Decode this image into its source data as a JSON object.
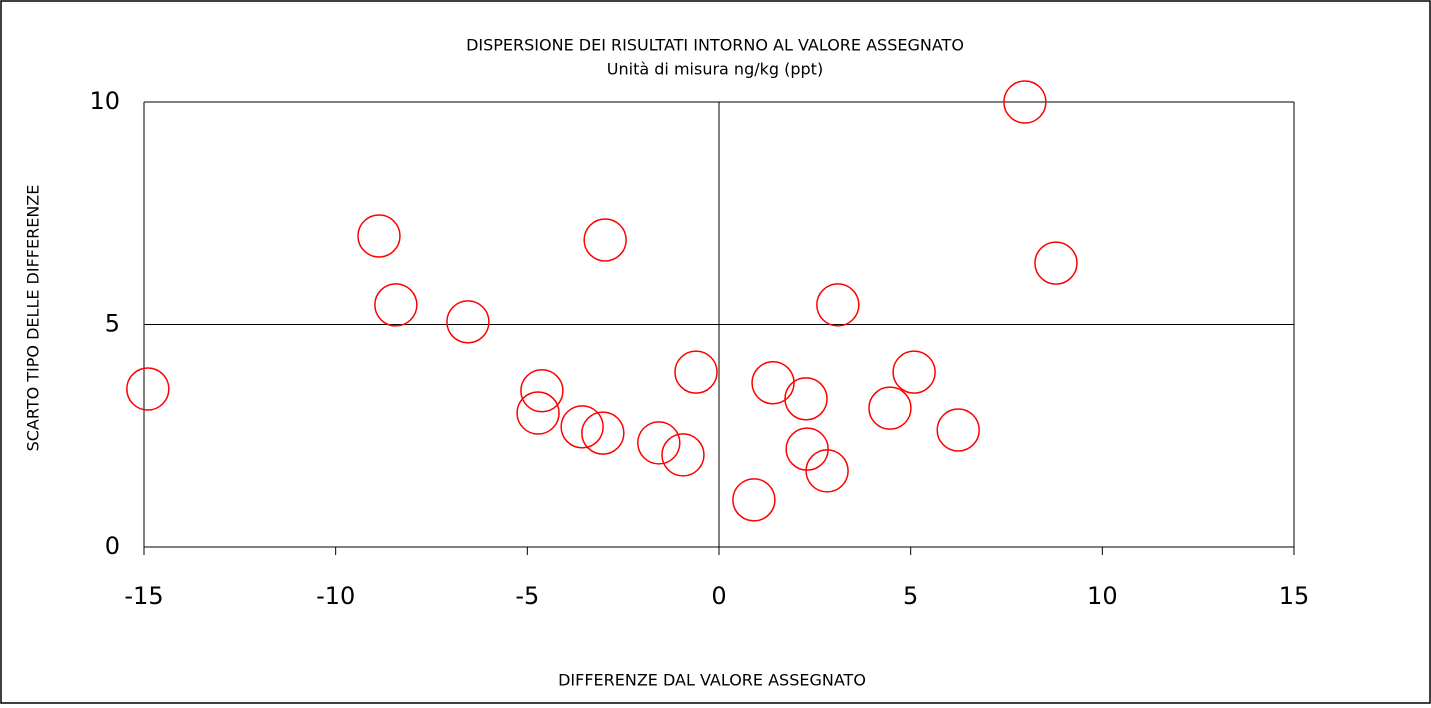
{
  "chart_data": {
    "type": "scatter",
    "title": "DISPERSIONE DEI RISULTATI INTORNO AL VALORE  ASSEGNATO",
    "subtitle": "Unità di misura ng/kg (ppt)",
    "x_label": "DIFFERENZE DAL VALORE ASSEGNATO",
    "y_label": "SCARTO TIPO DELLE DIFFERENZE",
    "color": "#ff0000",
    "x": [
      -14.9,
      -8.87,
      -8.43,
      -6.55,
      -2.97,
      -4.62,
      -4.72,
      -3.57,
      -3.03,
      -1.57,
      -0.94,
      -0.6,
      0.91,
      1.41,
      2.27,
      2.3,
      2.82,
      3.1,
      4.46,
      5.09,
      6.24,
      7.98,
      8.79
    ],
    "values": [
      3.55,
      6.99,
      5.44,
      5.06,
      6.9,
      3.51,
      3.01,
      2.7,
      2.56,
      2.34,
      2.07,
      3.93,
      1.06,
      3.69,
      3.33,
      2.2,
      1.71,
      5.44,
      3.12,
      3.93,
      2.63,
      10,
      6.38
    ],
    "xlim": [
      -15,
      15
    ],
    "xticks": [
      -15,
      -10,
      -5,
      0,
      5,
      10,
      15
    ],
    "ylim": [
      0,
      10
    ],
    "yticks": [
      0,
      5,
      10
    ],
    "grid": true
  }
}
